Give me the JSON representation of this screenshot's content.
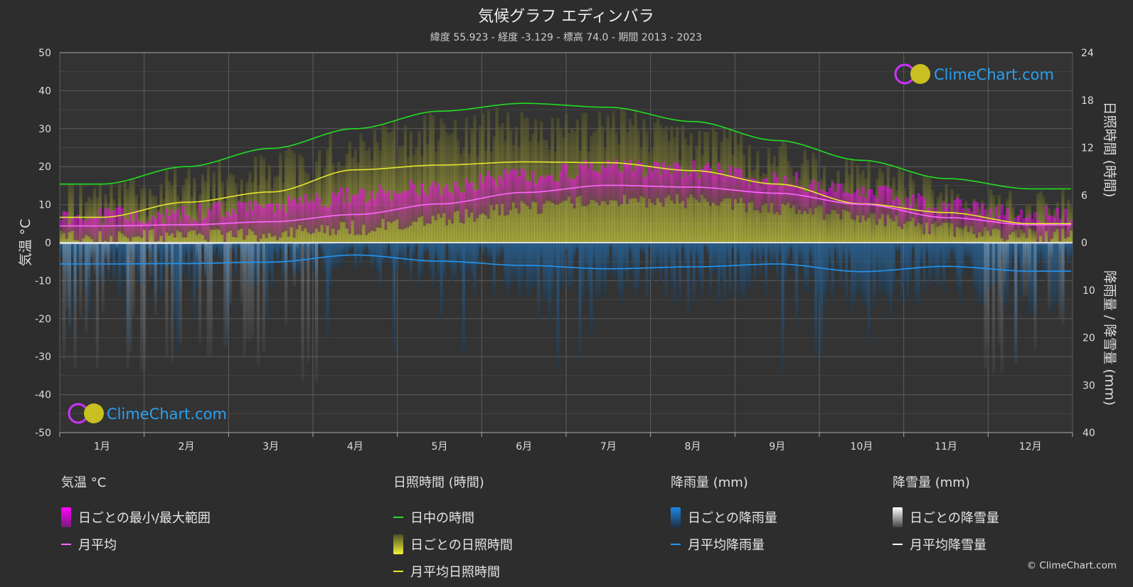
{
  "title": "気候グラフ エディンバラ",
  "subtitle": "緯度 55.923 - 経度 -3.129 - 標高 74.0 - 期間 2013 - 2023",
  "watermark": "ClimeChart.com",
  "copyright": "© ClimeChart.com",
  "chart_data": {
    "type": "line",
    "categories": [
      "1月",
      "2月",
      "3月",
      "4月",
      "5月",
      "6月",
      "7月",
      "8月",
      "9月",
      "10月",
      "11月",
      "12月"
    ],
    "left_axis": {
      "label": "気温 °C",
      "range": [
        -50,
        50
      ],
      "ticks": [
        50,
        40,
        30,
        20,
        10,
        0,
        -10,
        -20,
        -30,
        -40,
        -50
      ]
    },
    "right_axis_top": {
      "label": "日照時間 (時間)",
      "range": [
        0,
        24
      ],
      "ticks": [
        24,
        18,
        12,
        6,
        0
      ]
    },
    "right_axis_bottom": {
      "label": "降雨量 / 降雪量 (mm)",
      "range": [
        0,
        40
      ],
      "ticks": [
        0,
        10,
        20,
        30,
        40
      ]
    },
    "grid": true,
    "series": [
      {
        "name": "日中の時間",
        "axis": "sunshine_hours",
        "color": "#22dd22",
        "values": [
          7.4,
          9.6,
          11.9,
          14.4,
          16.6,
          17.6,
          17.1,
          15.3,
          12.9,
          10.4,
          8.1,
          6.8
        ]
      },
      {
        "name": "月平均日照時間",
        "axis": "sunshine_hours",
        "color": "#e6e62e",
        "values": [
          3.2,
          5.1,
          6.4,
          9.2,
          9.8,
          10.2,
          10.1,
          9.1,
          7.4,
          4.9,
          3.8,
          2.4
        ]
      },
      {
        "name": "月平均",
        "axis": "temperature_c",
        "color": "#ff66ff",
        "values": [
          4.4,
          4.7,
          5.5,
          7.4,
          10.2,
          13.2,
          15.1,
          14.6,
          13.0,
          10.1,
          6.6,
          4.7
        ]
      },
      {
        "name": "月平均降雨量",
        "axis": "precipitation_mm",
        "color": "#2196f3",
        "values": [
          4.5,
          4.4,
          4.1,
          2.6,
          3.9,
          4.8,
          5.5,
          5.1,
          4.5,
          6.1,
          5.0,
          6.0
        ]
      },
      {
        "name": "月平均降雪量",
        "axis": "precipitation_mm",
        "color": "#ffffff",
        "values": [
          0.1,
          0.1,
          0.05,
          0,
          0,
          0,
          0,
          0,
          0,
          0,
          0,
          0.05
        ]
      }
    ],
    "daily_ranges": {
      "temperature_min_max": {
        "name": "日ごとの最小/最大範囲",
        "color": "#ff00ff",
        "min": [
          1.5,
          1.6,
          2.2,
          3.9,
          6.4,
          9.3,
          11.3,
          11.0,
          9.2,
          6.6,
          3.6,
          1.8
        ],
        "max": [
          7.0,
          7.8,
          9.6,
          12.2,
          15.0,
          17.8,
          19.6,
          19.1,
          16.8,
          13.3,
          9.7,
          7.3
        ]
      },
      "sunshine_daily": {
        "name": "日ごとの日照時間",
        "color": "#c8c83c",
        "values": [
          5.0,
          7.0,
          9.2,
          11.8,
          13.6,
          14.6,
          14.2,
          12.6,
          10.6,
          7.8,
          5.6,
          4.4
        ]
      },
      "rain_daily": {
        "name": "日ごとの降雨量",
        "color": "#1e6eb4"
      },
      "snow_daily": {
        "name": "日ごとの降雪量",
        "color": "#bbbbbb"
      }
    }
  },
  "legend": {
    "temperature": {
      "heading": "気温 °C",
      "items": [
        {
          "label": "日ごとの最小/最大範囲",
          "color": "#ff00ff"
        },
        {
          "label": "月平均",
          "color": "#ff66ff"
        }
      ]
    },
    "sunshine": {
      "heading": "日照時間 (時間)",
      "items": [
        {
          "label": "日中の時間",
          "color": "#22dd22"
        },
        {
          "label": "日ごとの日照時間",
          "color": "#d6d63a"
        },
        {
          "label": "月平均日照時間",
          "color": "#e6e62e"
        }
      ]
    },
    "rain": {
      "heading": "降雨量 (mm)",
      "items": [
        {
          "label": "日ごとの降雨量",
          "color": "#1e88e5"
        },
        {
          "label": "月平均降雨量",
          "color": "#2196f3"
        }
      ]
    },
    "snow": {
      "heading": "降雪量 (mm)",
      "items": [
        {
          "label": "日ごとの降雪量",
          "color": "#dddddd"
        },
        {
          "label": "月平均降雪量",
          "color": "#ffffff"
        }
      ]
    }
  }
}
